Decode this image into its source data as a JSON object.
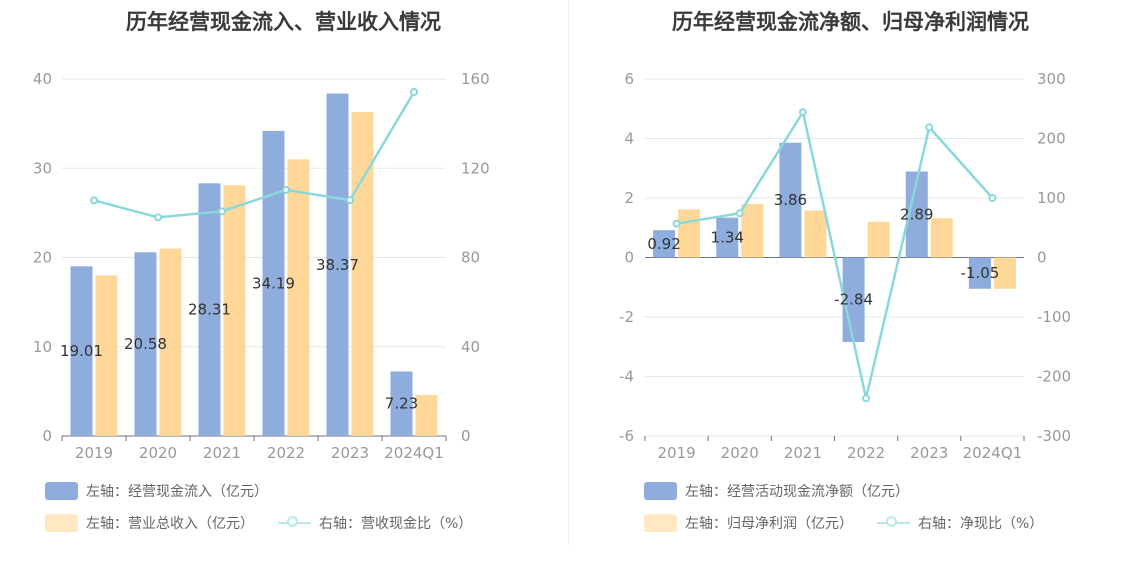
{
  "colors": {
    "blue": "#8eacdc",
    "orange": "#ffd899",
    "line": "#8ad8da",
    "grid": "#e4e7ef",
    "axis": "#999999",
    "label": "#333333"
  },
  "chart_data": [
    {
      "type": "bar",
      "title": "历年经营现金流入、营业收入情况",
      "categories": [
        "2019",
        "2020",
        "2021",
        "2022",
        "2023",
        "2024Q1"
      ],
      "left_axis": {
        "ylim": [
          0,
          40
        ],
        "ticks": [
          "0",
          "10",
          "20",
          "30",
          "40"
        ]
      },
      "right_axis": {
        "ylim": [
          0,
          160
        ],
        "ticks": [
          "0",
          "40",
          "80",
          "120",
          "160"
        ]
      },
      "grid": true,
      "series": [
        {
          "name": "左轴：经营现金流入（亿元）",
          "kind": "bar",
          "axis": "left",
          "color": "#8eacdc",
          "values": [
            19.01,
            20.58,
            28.31,
            34.19,
            38.37,
            7.23
          ],
          "labels": [
            "19.01",
            "20.58",
            "28.31",
            "34.19",
            "38.37",
            "7.23"
          ]
        },
        {
          "name": "左轴：营业总收入（亿元）",
          "kind": "bar",
          "axis": "left",
          "color": "#ffd899",
          "values": [
            18.0,
            21.0,
            28.1,
            31.0,
            36.3,
            4.6
          ]
        },
        {
          "name": "右轴：营收现金比（%）",
          "kind": "line",
          "axis": "right",
          "color": "#8ad8da",
          "values": [
            105.6,
            98.0,
            100.7,
            110.3,
            105.7,
            154.2
          ]
        }
      ],
      "legend_rows": [
        [
          "左轴：经营现金流入（亿元）"
        ],
        [
          "左轴：营业总收入（亿元）",
          "右轴：营收现金比（%）"
        ]
      ]
    },
    {
      "type": "bar",
      "title": "历年经营现金流净额、归母净利润情况",
      "categories": [
        "2019",
        "2020",
        "2021",
        "2022",
        "2023",
        "2024Q1"
      ],
      "left_axis": {
        "ylim": [
          -6,
          6
        ],
        "ticks": [
          "-6",
          "-4",
          "-2",
          "0",
          "2",
          "4",
          "6"
        ]
      },
      "right_axis": {
        "ylim": [
          -300,
          300
        ],
        "ticks": [
          "-300",
          "-200",
          "-100",
          "0",
          "100",
          "200",
          "300"
        ]
      },
      "grid": true,
      "series": [
        {
          "name": "左轴：经营活动现金流净额（亿元）",
          "kind": "bar",
          "axis": "left",
          "color": "#8eacdc",
          "values": [
            0.92,
            1.34,
            3.86,
            -2.84,
            2.89,
            -1.05
          ],
          "labels": [
            "0.92",
            "1.34",
            "3.86",
            "-2.84",
            "2.89",
            "-1.05"
          ]
        },
        {
          "name": "左轴：归母净利润（亿元）",
          "kind": "bar",
          "axis": "left",
          "color": "#ffd899",
          "values": [
            1.62,
            1.8,
            1.58,
            1.2,
            1.32,
            -1.05
          ]
        },
        {
          "name": "右轴：净现比（%）",
          "kind": "line",
          "axis": "right",
          "color": "#8ad8da",
          "values": [
            56.8,
            74.4,
            244.3,
            -236.7,
            218.9,
            100.0
          ]
        }
      ],
      "legend_rows": [
        [
          "左轴：经营活动现金流净额（亿元）"
        ],
        [
          "左轴：归母净利润（亿元）",
          "右轴：净现比（%）"
        ]
      ]
    }
  ]
}
